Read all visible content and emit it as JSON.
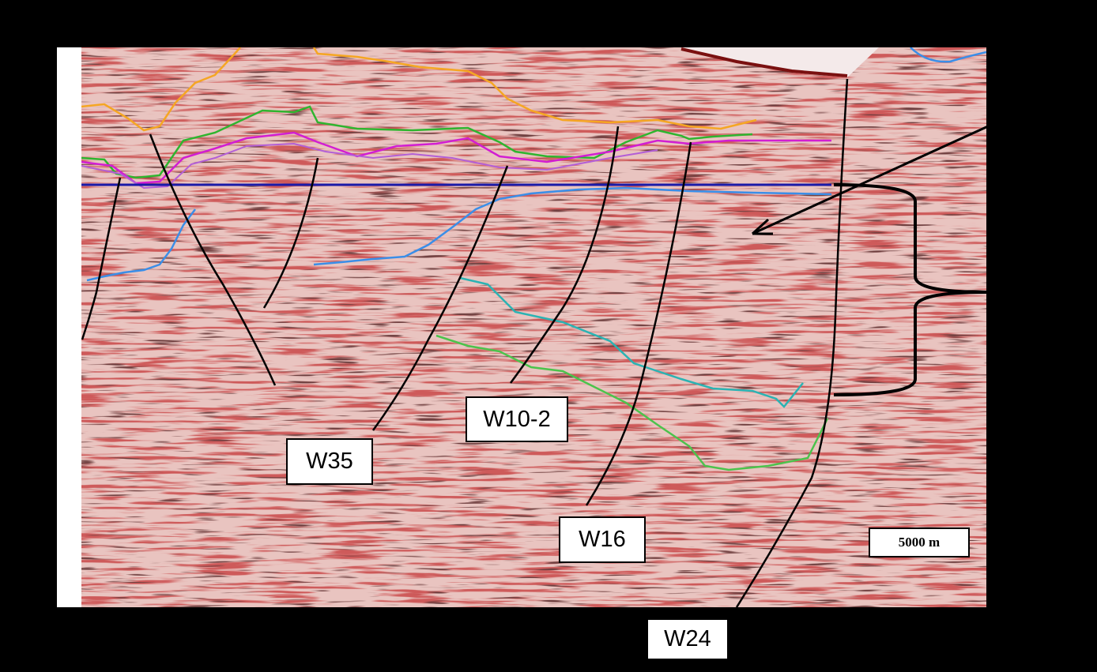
{
  "figure": {
    "title": "",
    "background_color": "#000000"
  },
  "fault_labels": [
    {
      "id": "W35",
      "text": "W35"
    },
    {
      "id": "W10-2",
      "text": "W10-2"
    },
    {
      "id": "W16",
      "text": "W16"
    },
    {
      "id": "W24",
      "text": "W24"
    }
  ],
  "scale_bar": {
    "text": "5000 m"
  },
  "horizon_colors": {
    "orange": "#f5a623",
    "green": "#2fb52f",
    "magenta": "#d21ed2",
    "violet": "#b35fd6",
    "navy": "#1a1aa8",
    "blue": "#3a8ee8",
    "cyan": "#2bb3b3",
    "lower_green": "#4cc34c"
  },
  "seismic_colors": {
    "base": "#e9c4c0",
    "red_reflector": "#a32020",
    "dark_reflector": "#2a0e0e"
  },
  "icons": [
    "arrow-icon",
    "curly-brace-icon"
  ]
}
